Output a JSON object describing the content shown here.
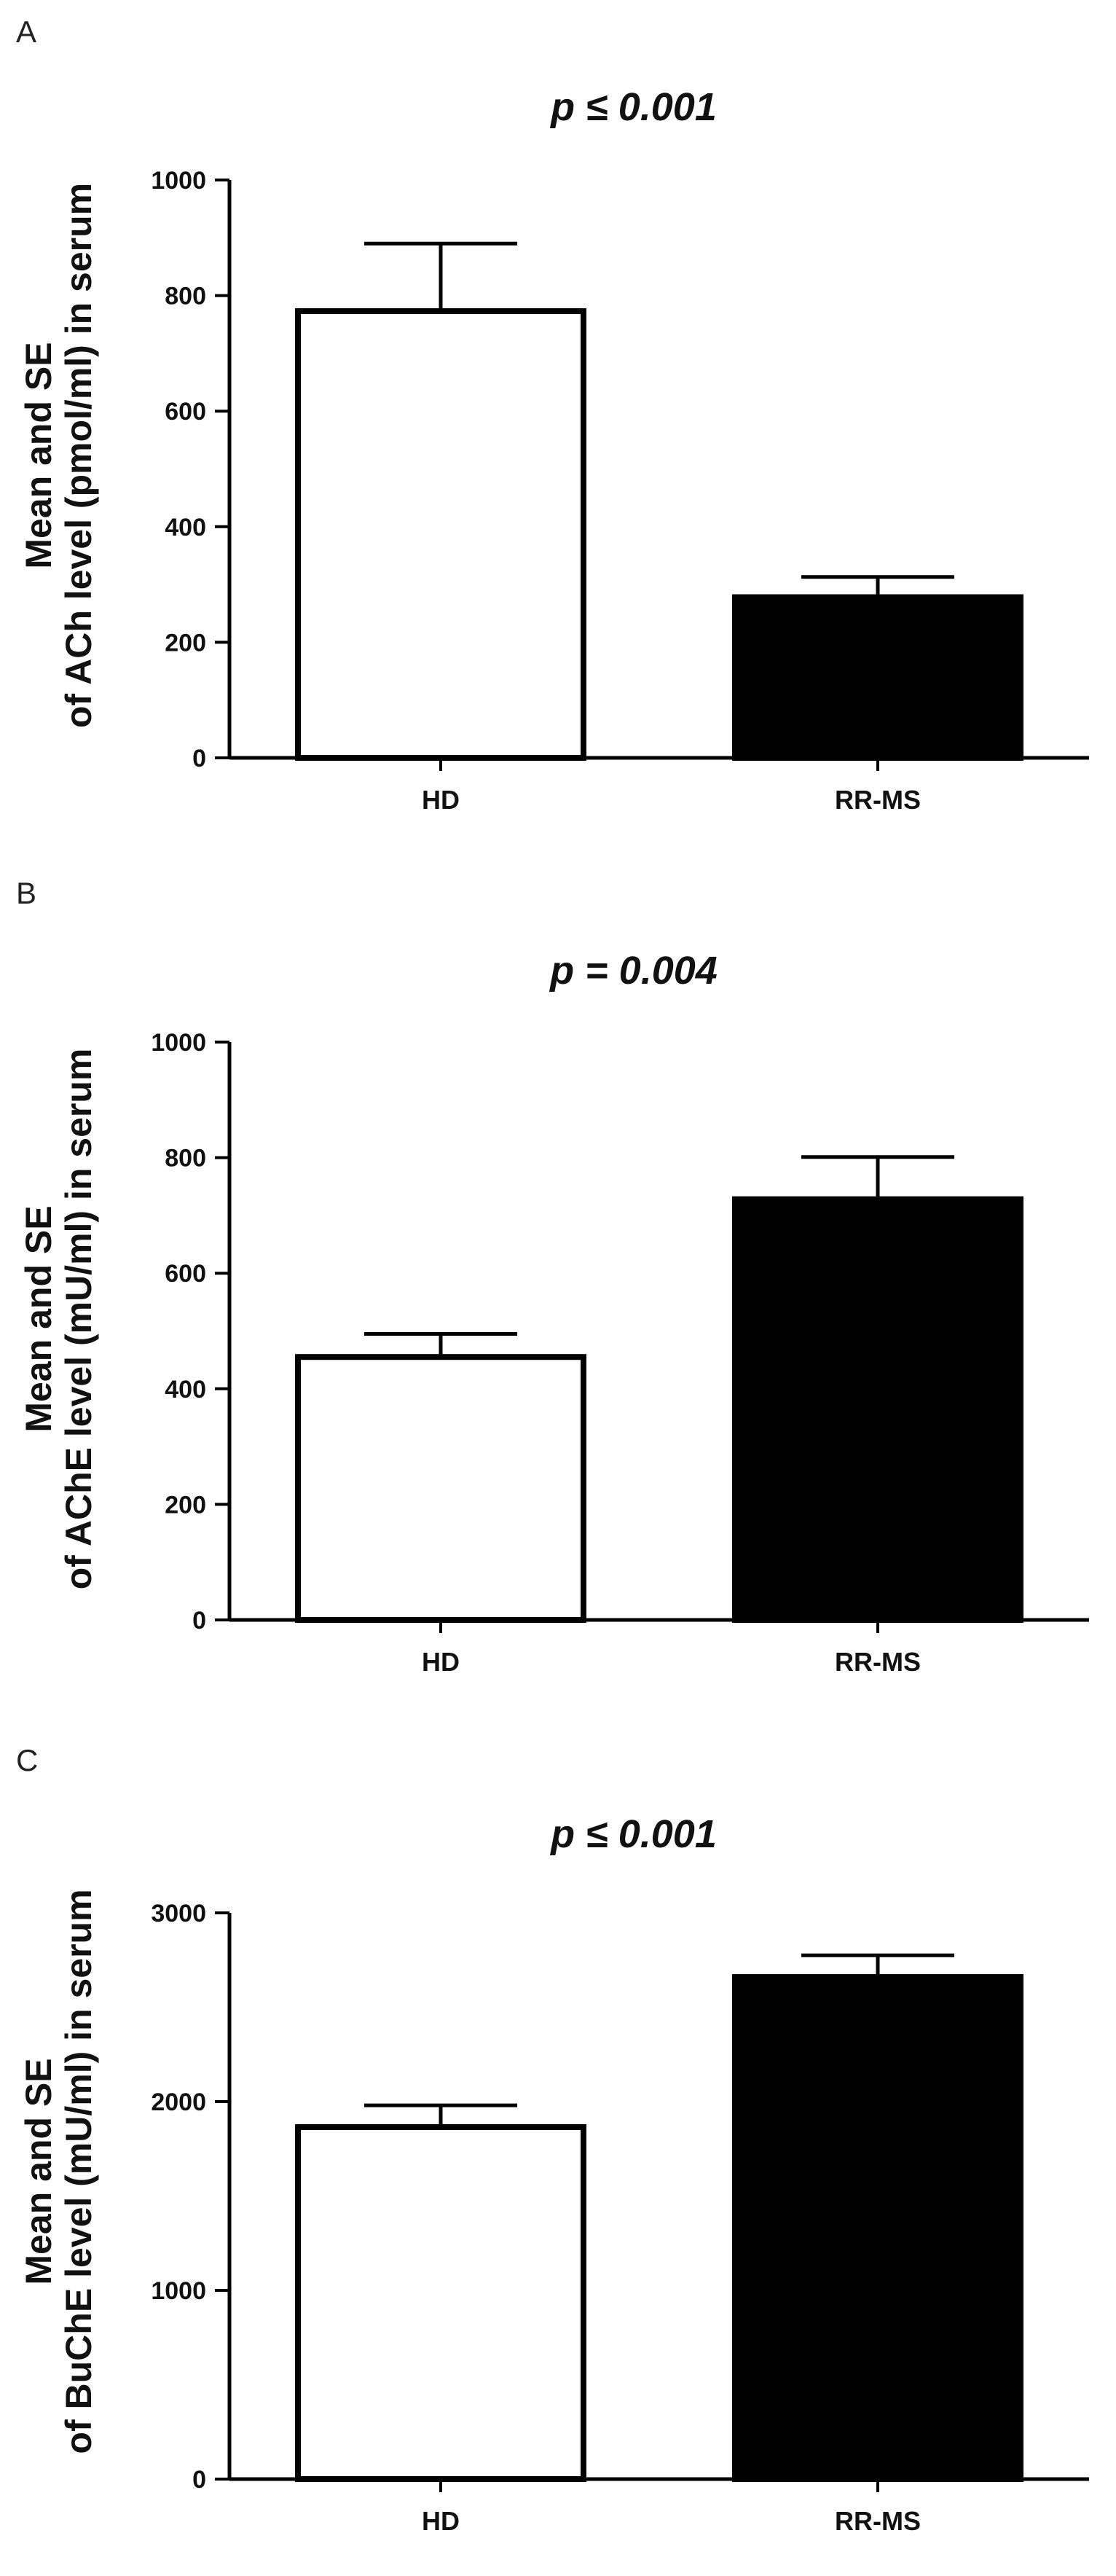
{
  "chart_data": [
    {
      "type": "bar",
      "panel": "A",
      "title": "p ≤ 0.001",
      "ylabel_line1": "Mean and SE",
      "ylabel_line2": "of ACh level (pmol/ml) in serum",
      "xlabel": "",
      "categories": [
        "HD",
        "RR-MS"
      ],
      "values": [
        773,
        278
      ],
      "error": [
        117,
        35
      ],
      "fill_colors": [
        "#ffffff",
        "#000000"
      ],
      "ylim": [
        0,
        1000
      ],
      "yticks": [
        0,
        200,
        400,
        600,
        800,
        1000
      ],
      "grid": false,
      "legend": "none"
    },
    {
      "type": "bar",
      "panel": "B",
      "title": "p = 0.004",
      "ylabel_line1": "Mean and SE",
      "ylabel_line2": "of AChE level (mU/ml) in serum",
      "xlabel": "",
      "categories": [
        "HD",
        "RR-MS"
      ],
      "values": [
        455,
        728
      ],
      "error": [
        40,
        73
      ],
      "fill_colors": [
        "#ffffff",
        "#000000"
      ],
      "ylim": [
        0,
        1000
      ],
      "yticks": [
        0,
        200,
        400,
        600,
        800,
        1000
      ],
      "grid": false,
      "legend": "none"
    },
    {
      "type": "bar",
      "panel": "C",
      "title": "p ≤ 0.001",
      "ylabel_line1": "Mean and SE",
      "ylabel_line2": "of BuChE level (mU/ml) in serum",
      "xlabel": "",
      "categories": [
        "HD",
        "RR-MS"
      ],
      "values": [
        1865,
        2660
      ],
      "error": [
        115,
        115
      ],
      "fill_colors": [
        "#ffffff",
        "#000000"
      ],
      "ylim": [
        0,
        3000
      ],
      "yticks": [
        0,
        1000,
        2000,
        3000
      ],
      "grid": false,
      "legend": "none"
    }
  ]
}
